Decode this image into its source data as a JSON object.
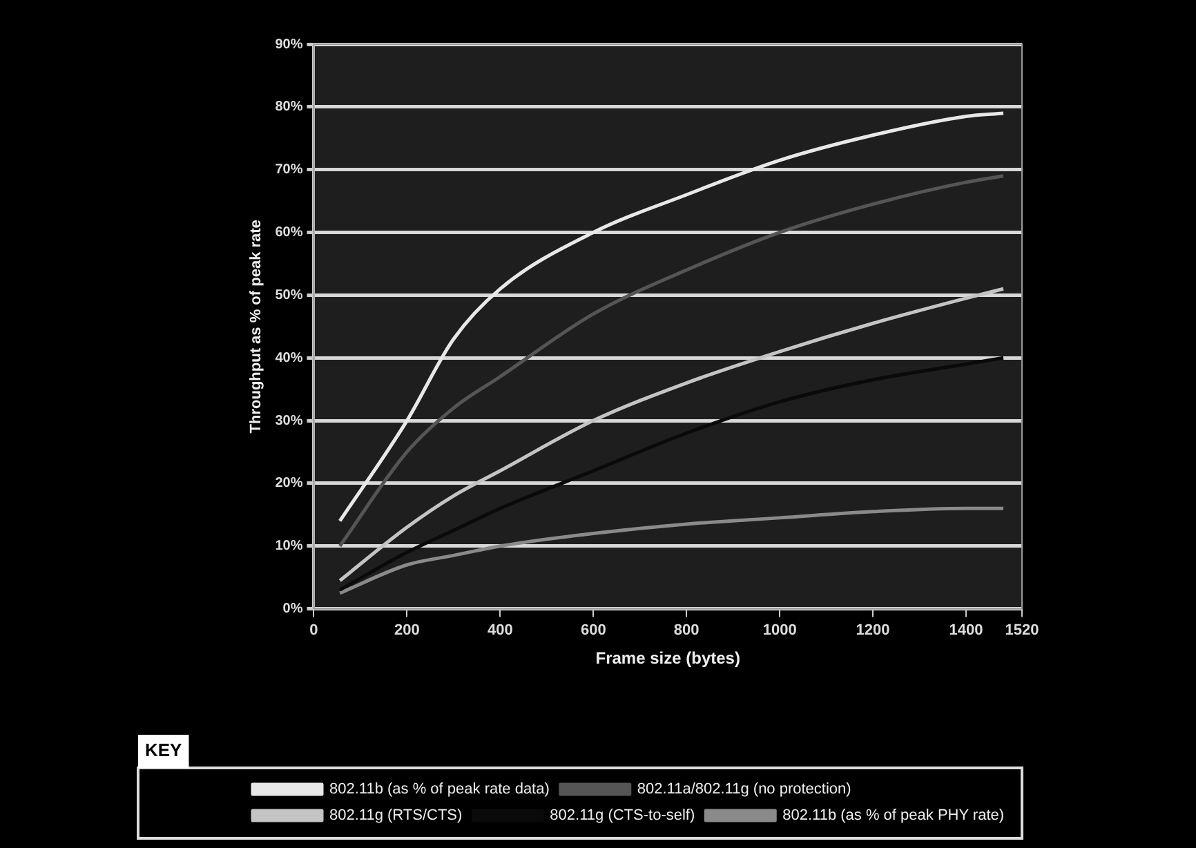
{
  "chart_data": {
    "type": "line",
    "xlabel": "Frame size (bytes)",
    "ylabel": "Throughput as % of peak rate",
    "legend_title": "KEY",
    "x": [
      56,
      200,
      300,
      400,
      600,
      800,
      1000,
      1200,
      1400,
      1480
    ],
    "series": [
      {
        "name": "802.11b (as % of peak rate data)",
        "color": "#e8e8e8",
        "values": [
          14,
          30,
          43,
          51,
          60,
          66,
          71.5,
          75.5,
          78.5,
          79
        ]
      },
      {
        "name": "802.11a/802.11g (no protection)",
        "color": "#555555",
        "values": [
          10,
          25,
          32,
          37,
          47,
          54,
          60,
          64.5,
          68,
          69
        ]
      },
      {
        "name": "802.11g (RTS/CTS)",
        "color": "#c4c4c4",
        "values": [
          4.5,
          13,
          18,
          22,
          30,
          36,
          41,
          45.5,
          49.5,
          51
        ]
      },
      {
        "name": "802.11g (CTS-to-self)",
        "color": "#0a0a0a",
        "values": [
          3,
          9,
          12.5,
          16,
          22,
          28,
          33,
          36.5,
          39,
          40
        ]
      },
      {
        "name": "802.11b (as % of peak PHY rate)",
        "color": "#8a8a8a",
        "values": [
          2.5,
          7,
          8.5,
          10,
          12,
          13.5,
          14.5,
          15.5,
          16,
          16
        ]
      }
    ],
    "xlim": [
      0,
      1520
    ],
    "ylim": [
      0,
      90
    ],
    "xticks": [
      0,
      200,
      400,
      600,
      800,
      1000,
      1200,
      1400,
      1520
    ],
    "yticks": [
      {
        "value": 0,
        "label": "0%"
      },
      {
        "value": 10,
        "label": "10%"
      },
      {
        "value": 20,
        "label": "20%"
      },
      {
        "value": 30,
        "label": "30%"
      },
      {
        "value": 40,
        "label": "40%"
      },
      {
        "value": 50,
        "label": "50%"
      },
      {
        "value": 60,
        "label": "60%"
      },
      {
        "value": 70,
        "label": "70%"
      },
      {
        "value": 80,
        "label": "80%"
      },
      {
        "value": 90,
        "label": "90%"
      }
    ],
    "grid": "y",
    "legend": "bottom",
    "marker": "none",
    "line_style": "solid"
  }
}
